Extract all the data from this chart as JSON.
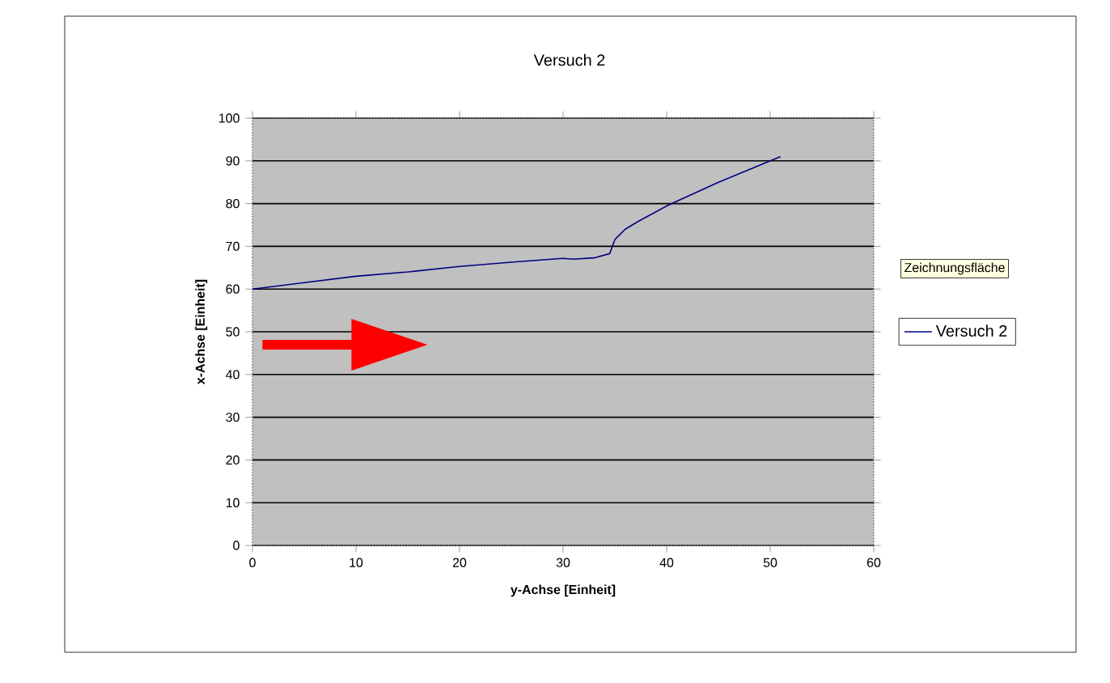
{
  "chart_data": {
    "type": "line",
    "title": "Versuch 2",
    "xlabel": "y-Achse   [Einheit]",
    "ylabel": "x-Achse   [Einheit]",
    "series": [
      {
        "name": "Versuch 2",
        "color": "#000080",
        "x": [
          0,
          5,
          10,
          15,
          20,
          25,
          30,
          31,
          33,
          34.5,
          35,
          36,
          37.3,
          40.2,
          45,
          51
        ],
        "values": [
          60,
          61.5,
          63,
          64,
          65.3,
          66.3,
          67.2,
          67,
          67.3,
          68.3,
          71.6,
          74,
          75.9,
          79.7,
          85,
          91
        ]
      }
    ],
    "xlim": [
      0,
      60
    ],
    "xticks": [
      0,
      10,
      20,
      30,
      40,
      50,
      60
    ],
    "ylim": [
      0,
      100
    ],
    "yticks": [
      0,
      10,
      20,
      30,
      40,
      50,
      60,
      70,
      80,
      90,
      100
    ],
    "grid": "y",
    "legend": "right",
    "marker": "none",
    "line_style": "solid",
    "annotations": [
      "Zeichnungsfläche"
    ]
  }
}
